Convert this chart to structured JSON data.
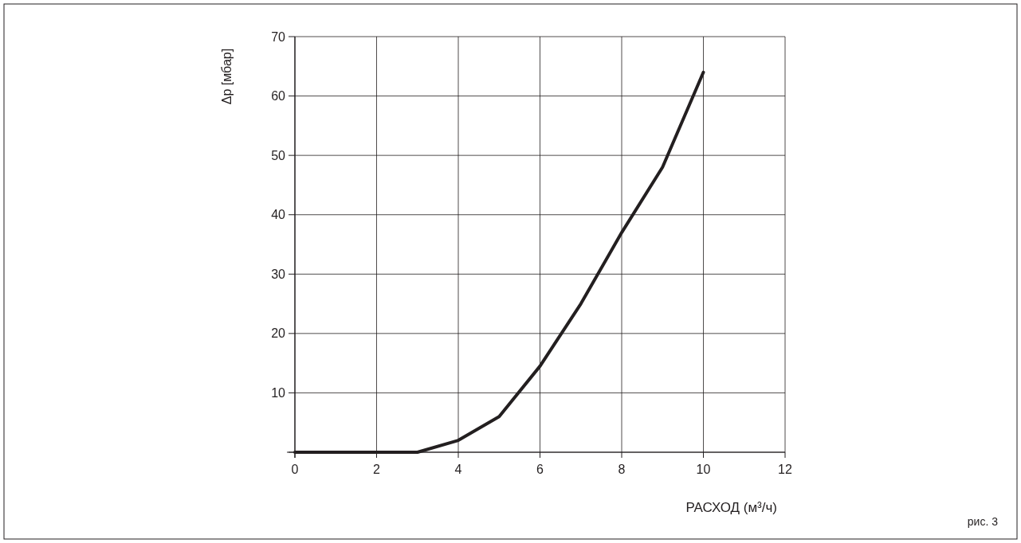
{
  "chart_data": {
    "type": "line",
    "xlabel": "РАСХОД (м³/ч)",
    "ylabel": "Δp [мбар]",
    "annotations": [
      "рис. 3"
    ],
    "x": [
      0,
      3,
      4,
      5,
      6,
      7,
      8,
      9,
      10
    ],
    "series": [
      {
        "color": "#231f20",
        "values": [
          0,
          0,
          2,
          6,
          14.5,
          25,
          37,
          48,
          64
        ]
      }
    ],
    "xlim": [
      0,
      12
    ],
    "xticks": [
      0,
      2,
      4,
      6,
      8,
      10,
      12
    ],
    "ylim": [
      0,
      70
    ],
    "yticks": [
      {
        "value": 0,
        "label": null
      },
      10,
      20,
      30,
      40,
      50,
      60,
      70
    ],
    "grid": true,
    "marker": "none",
    "line_style": "solid"
  }
}
